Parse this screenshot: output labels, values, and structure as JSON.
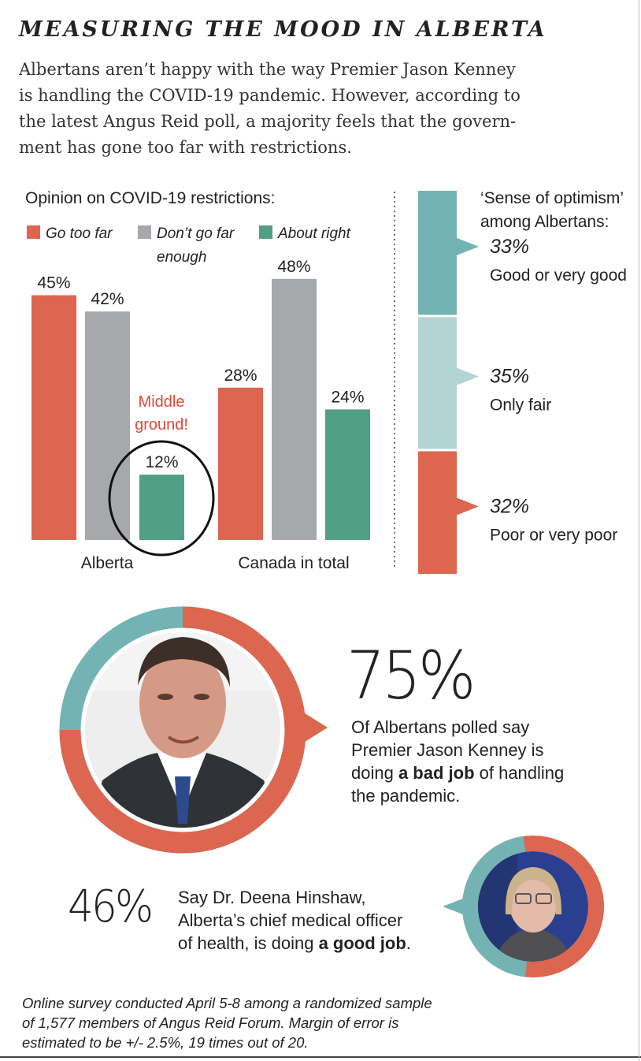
{
  "title": "MEASURING THE MOOD IN ALBERTA",
  "subtitle_lines": [
    "Albertans aren’t happy with the way Premier Jason Kenney",
    "is handling the COVID-19 pandemic. However, according to",
    "the latest Angus Reid poll, a majority feels that the govern-",
    "ment has gone too far with restrictions."
  ],
  "colors": {
    "orange": "#dc6650",
    "gray": "#a7a8ab",
    "green": "#519f84",
    "teal": "#74b3b4",
    "light_teal": "#b2d5d4",
    "red_text": "#e04a38"
  },
  "chart_data": [
    {
      "type": "bar",
      "title": "Opinion on COVID-19 restrictions:",
      "categories": [
        "Alberta",
        "Canada in total"
      ],
      "series": [
        {
          "name": "Go too far",
          "values": [
            45,
            28
          ],
          "labels": [
            "45%",
            "28%"
          ]
        },
        {
          "name": "Don’t go far enough",
          "name_lines": [
            "Don’t go far",
            "enough"
          ],
          "values": [
            42,
            48
          ],
          "labels": [
            "42%",
            "48%"
          ]
        },
        {
          "name": "About right",
          "values": [
            12,
            24
          ],
          "labels": [
            "12%",
            "24%"
          ]
        }
      ],
      "annotation_lines": [
        "Middle",
        "ground!"
      ],
      "ylim": [
        0,
        50
      ],
      "grid": false,
      "legend_position": "top"
    },
    {
      "type": "bar",
      "title_lines": [
        "‘Sense of optimism’",
        "among Albertans:"
      ],
      "segments": [
        {
          "label": "Good or very good",
          "value": 33,
          "value_label": "33%"
        },
        {
          "label": "Only fair",
          "value": 35,
          "value_label": "35%"
        },
        {
          "label": "Poor or very poor",
          "value": 32,
          "value_label": "32%"
        }
      ]
    },
    {
      "type": "pie",
      "value": 75,
      "value_label": "75%",
      "caption": [
        "Of Albertans polled say",
        "Premier Jason Kenney is",
        "doing ",
        "a bad job",
        " of handling",
        "the pandemic."
      ]
    },
    {
      "type": "pie",
      "value": 46,
      "value_label": "46%",
      "caption": [
        "Say Dr. Deena Hinshaw,",
        "Alberta’s chief medical officer",
        "of health, is doing ",
        "a good job",
        "."
      ]
    }
  ],
  "photos": {
    "kenney": "portrait-photo",
    "hinshaw": "portrait-photo"
  },
  "footnote_lines": [
    "Online survey conducted April 5-8 among a randomized sample",
    "of 1,577 members of Angus Reid Forum. Margin of error is",
    "estimated to be +/- 2.5%, 19 times out of 20."
  ]
}
